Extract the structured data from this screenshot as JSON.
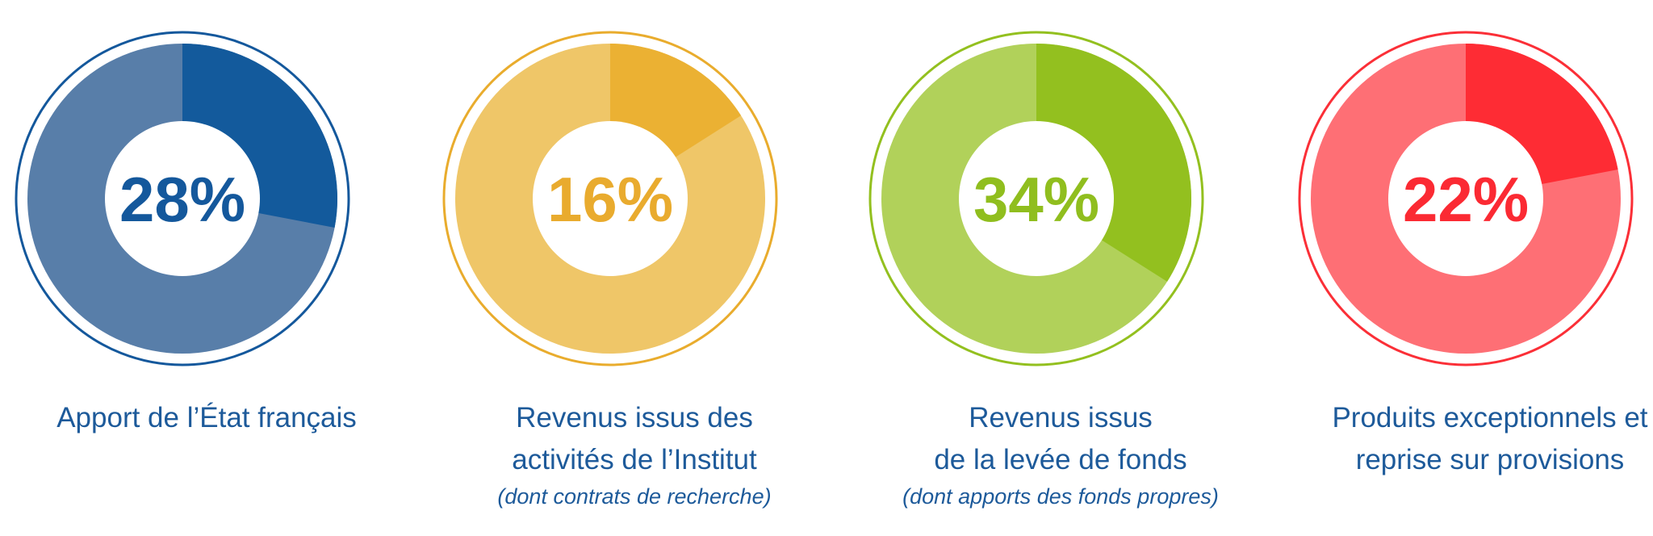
{
  "chart_data": [
    {
      "type": "pie",
      "value": 28,
      "label": "28%",
      "caption": [
        "Apport de l’État français"
      ],
      "note": "",
      "colors": {
        "highlight": "#135a9c",
        "rest": "#587ea9",
        "ring": "#14589c",
        "text": "#14589c"
      }
    },
    {
      "type": "pie",
      "value": 16,
      "label": "16%",
      "caption": [
        "Revenus issus des",
        "activités de l’Institut"
      ],
      "note": "(dont contrats de recherche)",
      "colors": {
        "highlight": "#ebb133",
        "rest": "#efc668",
        "ring": "#e9ac2d",
        "text": "#e9ab2e"
      }
    },
    {
      "type": "pie",
      "value": 34,
      "label": "34%",
      "caption": [
        "Revenus issus",
        "de la levée de fonds"
      ],
      "note": "(dont apports des fonds propres)",
      "colors": {
        "highlight": "#93c01f",
        "rest": "#b1d15a",
        "ring": "#93c01f",
        "text": "#90be1e"
      }
    },
    {
      "type": "pie",
      "value": 22,
      "label": "22%",
      "caption": [
        "Produits exceptionnels et",
        "reprise sur provisions"
      ],
      "note": "",
      "colors": {
        "highlight": "#fe2c34",
        "rest": "#fe6f75",
        "ring": "#fb2f37",
        "text": "#fb2a33"
      }
    }
  ]
}
